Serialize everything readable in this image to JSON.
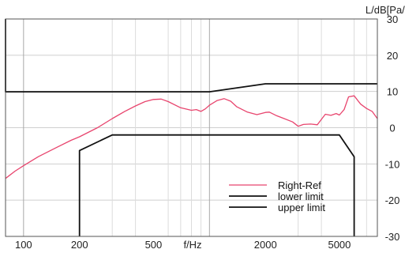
{
  "chart_data": {
    "type": "line",
    "title": "",
    "xlabel": "f/Hz",
    "ylabel": "L/dB[Pa/V]",
    "xscale": "log",
    "xlim": [
      80,
      8000
    ],
    "ylim": [
      -30,
      30
    ],
    "grid": true,
    "legend_position": "bottom-right",
    "x_ticks": [
      {
        "value": 100,
        "label": "100"
      },
      {
        "value": 200,
        "label": "200"
      },
      {
        "value": 500,
        "label": "500"
      },
      {
        "value": 2000,
        "label": "2000"
      },
      {
        "value": 5000,
        "label": "5000"
      }
    ],
    "x_minor_grid": [
      300,
      400,
      600,
      700,
      800,
      900,
      3000,
      4000,
      6000,
      7000
    ],
    "x_major_grid": [
      100,
      1000
    ],
    "y_ticks": [
      {
        "value": 30,
        "label": "30"
      },
      {
        "value": 20,
        "label": "20"
      },
      {
        "value": 10,
        "label": "10"
      },
      {
        "value": 0,
        "label": "0"
      },
      {
        "value": -10,
        "label": "-10"
      },
      {
        "value": -20,
        "label": "-20"
      },
      {
        "value": -30,
        "label": "-30"
      }
    ],
    "series": [
      {
        "name": "Right-Ref",
        "color": "#e8456e",
        "points": [
          [
            80,
            -14
          ],
          [
            90,
            -12
          ],
          [
            100,
            -10.5
          ],
          [
            120,
            -8
          ],
          [
            150,
            -5.5
          ],
          [
            180,
            -3.5
          ],
          [
            200,
            -2.5
          ],
          [
            250,
            0
          ],
          [
            300,
            2.5
          ],
          [
            350,
            4.5
          ],
          [
            400,
            6
          ],
          [
            450,
            7.2
          ],
          [
            500,
            7.8
          ],
          [
            550,
            7.9
          ],
          [
            600,
            7.2
          ],
          [
            700,
            5.5
          ],
          [
            800,
            4.8
          ],
          [
            850,
            5
          ],
          [
            900,
            4.5
          ],
          [
            950,
            5.2
          ],
          [
            1000,
            6.2
          ],
          [
            1100,
            7.5
          ],
          [
            1200,
            8
          ],
          [
            1300,
            7.3
          ],
          [
            1400,
            5.8
          ],
          [
            1600,
            4.3
          ],
          [
            1800,
            3.6
          ],
          [
            2000,
            4.2
          ],
          [
            2100,
            4.3
          ],
          [
            2300,
            3.3
          ],
          [
            2500,
            2.6
          ],
          [
            2800,
            1.6
          ],
          [
            3000,
            0.4
          ],
          [
            3200,
            0.9
          ],
          [
            3500,
            1
          ],
          [
            3800,
            0.8
          ],
          [
            4000,
            2.3
          ],
          [
            4200,
            3.7
          ],
          [
            4500,
            3.4
          ],
          [
            4800,
            3.9
          ],
          [
            5000,
            3.5
          ],
          [
            5300,
            5
          ],
          [
            5600,
            8.5
          ],
          [
            6000,
            8.8
          ],
          [
            6500,
            6.5
          ],
          [
            7000,
            5.3
          ],
          [
            7500,
            4.5
          ],
          [
            8000,
            2.5
          ]
        ]
      },
      {
        "name": "lower limit",
        "color": "#111111",
        "points": [
          [
            200,
            -31
          ],
          [
            200,
            -6.3
          ],
          [
            300,
            -2
          ],
          [
            5000,
            -2
          ],
          [
            6000,
            -8
          ],
          [
            6000,
            -31
          ]
        ]
      },
      {
        "name": "upper limit",
        "color": "#111111",
        "points": [
          [
            80,
            31
          ],
          [
            80,
            9.9
          ],
          [
            1000,
            9.9
          ],
          [
            2000,
            12.1
          ],
          [
            8000,
            12.1
          ]
        ]
      }
    ]
  }
}
